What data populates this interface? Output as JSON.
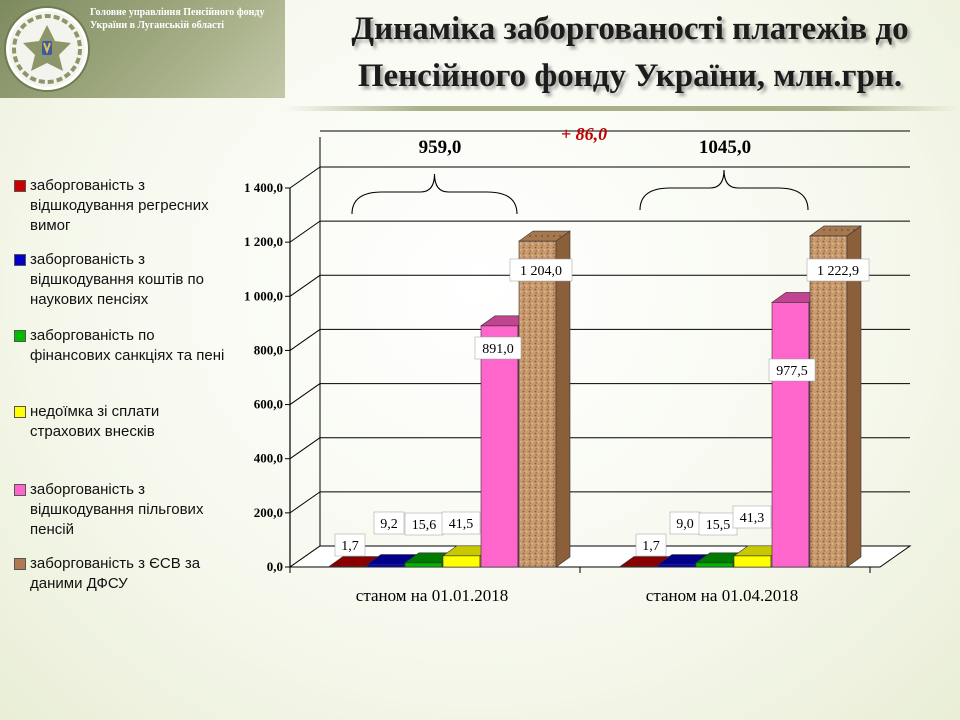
{
  "header": {
    "org_name": "Головне управління Пенсійного фонду України в Луганській області",
    "title": "Динаміка заборгованості платежів до Пенсійного фонду України, млн.грн."
  },
  "colors": {
    "red": "#cc0000",
    "blue": "#0000cc",
    "green": "#00bb00",
    "yellow": "#ffff00",
    "pink": "#ff66cc",
    "cork": "#c89a6e"
  },
  "chart_data": {
    "type": "bar",
    "categories": [
      "станом на 01.01.2018",
      "станом на 01.04.2018"
    ],
    "series": [
      {
        "name": "заборгованість з відшкодування регресних вимог",
        "color": "#cc0000",
        "values": [
          1.7,
          1.7
        ],
        "labels": [
          "1,7",
          "1,7"
        ]
      },
      {
        "name": "заборгованість з відшкодування коштів по наукових пенсіях",
        "color": "#0000cc",
        "values": [
          9.2,
          9.0
        ],
        "labels": [
          "9,2",
          "9,0"
        ]
      },
      {
        "name": " заборгованість по фінансових санкціях та пені",
        "color": "#00bb00",
        "values": [
          15.6,
          15.5
        ],
        "labels": [
          "15,6",
          "15,5"
        ]
      },
      {
        "name": "недоїмка зі сплати страхових внесків",
        "color": "#ffff00",
        "values": [
          41.5,
          41.3
        ],
        "labels": [
          "41,5",
          "41,3"
        ]
      },
      {
        "name": "заборгованість з відшкодування пільгових пенсій",
        "color": "#ff66cc",
        "values": [
          891.0,
          977.5
        ],
        "labels": [
          "891,0",
          "977,5"
        ]
      },
      {
        "name": "заборгованість з ЄСВ за даними ДФСУ",
        "color": "#c89a6e",
        "values": [
          1204.0,
          1222.9
        ],
        "labels": [
          "1 204,0",
          "1 222,9"
        ]
      }
    ],
    "y_ticks": [
      "0,0",
      "200,0",
      "400,0",
      "600,0",
      "800,0",
      "1 000,0",
      "1 200,0",
      "1 400,0"
    ],
    "ylim": [
      0,
      1400
    ],
    "annotations": {
      "group_totals": [
        "959,0",
        "1045,0"
      ],
      "difference": "+ 86,0"
    },
    "grid": true,
    "legend_position": "left"
  }
}
